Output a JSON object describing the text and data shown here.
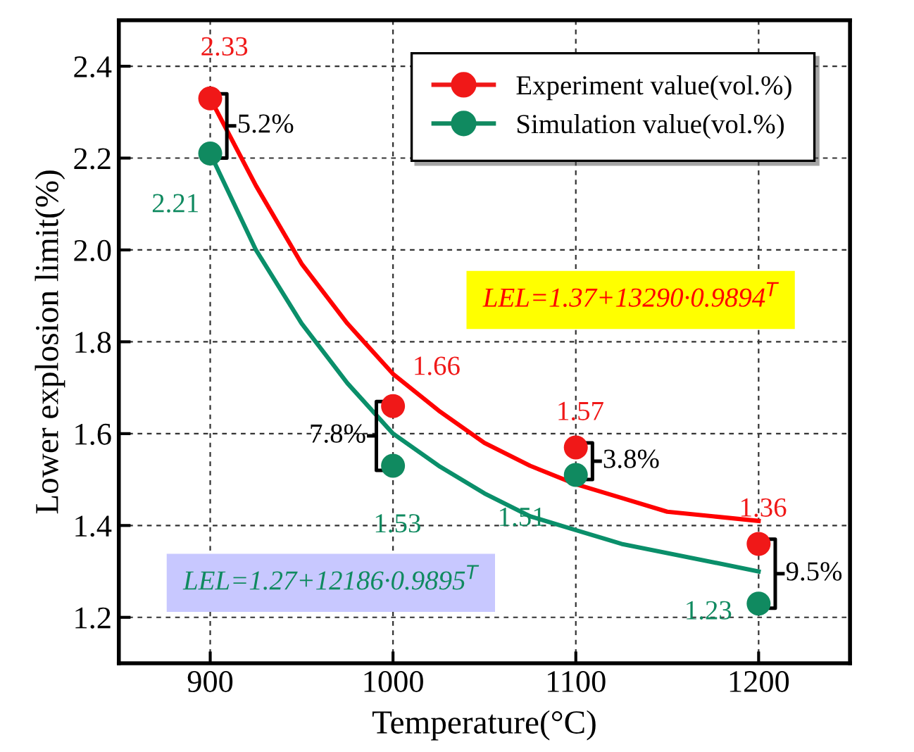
{
  "chart_data": {
    "type": "scatter",
    "xlabel": "Temperature(°C)",
    "ylabel": "Lower explosion limit(%)",
    "xlim": [
      850,
      1250
    ],
    "xticks": [
      900,
      1000,
      1100,
      1200
    ],
    "ylim": [
      1.1,
      2.5
    ],
    "yticks": [
      1.2,
      1.4,
      1.6,
      1.8,
      {
        "value": 2.0,
        "label": "2.0"
      },
      2.2,
      2.4
    ],
    "grid": true,
    "legend": "top right",
    "series": [
      {
        "name": "Experiment value(vol.%)",
        "marker": "circle",
        "color": "#f01818",
        "x": [
          900,
          1000,
          1100,
          1200
        ],
        "values": [
          2.33,
          1.66,
          1.57,
          1.36
        ],
        "value_labels": [
          "2.33",
          "1.66",
          "1.57",
          "1.36"
        ]
      },
      {
        "name": "Simulation value(vol.%)",
        "marker": "circle",
        "color": "#108a60",
        "x": [
          900,
          1000,
          1100,
          1200
        ],
        "values": [
          2.21,
          1.53,
          1.51,
          1.23
        ],
        "value_labels": [
          "2.21",
          "1.53",
          "1.51",
          "1.23"
        ]
      },
      {
        "type": "line",
        "color": "#ff0000",
        "x": [
          900,
          925,
          950,
          975,
          1000,
          1025,
          1050,
          1075,
          1100,
          1125,
          1150,
          1175,
          1200
        ],
        "values": [
          2.33,
          2.14,
          1.97,
          1.84,
          1.73,
          1.65,
          1.58,
          1.53,
          1.49,
          1.46,
          1.43,
          1.42,
          1.41
        ]
      },
      {
        "type": "line",
        "color": "#0a8f6a",
        "x": [
          900,
          925,
          950,
          975,
          1000,
          1025,
          1050,
          1075,
          1100,
          1125,
          1150,
          1175,
          1200
        ],
        "values": [
          2.21,
          2.0,
          1.84,
          1.71,
          1.6,
          1.53,
          1.47,
          1.42,
          1.39,
          1.36,
          1.34,
          1.32,
          1.3
        ]
      }
    ],
    "annotations": [
      "5.2%",
      "7.8%",
      "3.8%",
      "9.5%",
      "LEL=1.37+13290·0.9894$^{T}$",
      "LEL=1.27+12186·0.9895$^{T}$"
    ]
  }
}
